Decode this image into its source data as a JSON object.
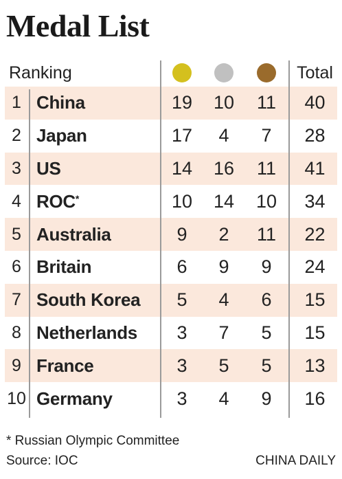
{
  "title": "Medal List",
  "header": {
    "ranking": "Ranking",
    "total": "Total",
    "medal_colors": {
      "gold": "#d4c01e",
      "silver": "#c0c0c0",
      "bronze": "#9a6b2c"
    },
    "medal_icons": [
      "gold-medal-icon",
      "silver-medal-icon",
      "bronze-medal-icon"
    ]
  },
  "colors": {
    "row_shade": "#fbe8dc",
    "divider": "#9a9a9a"
  },
  "rows": [
    {
      "rank": "1",
      "country": "China",
      "mark": "",
      "gold": "19",
      "silver": "10",
      "bronze": "11",
      "total": "40"
    },
    {
      "rank": "2",
      "country": "Japan",
      "mark": "",
      "gold": "17",
      "silver": "4",
      "bronze": "7",
      "total": "28"
    },
    {
      "rank": "3",
      "country": "US",
      "mark": "",
      "gold": "14",
      "silver": "16",
      "bronze": "11",
      "total": "41"
    },
    {
      "rank": "4",
      "country": "ROC",
      "mark": "*",
      "gold": "10",
      "silver": "14",
      "bronze": "10",
      "total": "34"
    },
    {
      "rank": "5",
      "country": "Australia",
      "mark": "",
      "gold": "9",
      "silver": "2",
      "bronze": "11",
      "total": "22"
    },
    {
      "rank": "6",
      "country": "Britain",
      "mark": "",
      "gold": "6",
      "silver": "9",
      "bronze": "9",
      "total": "24"
    },
    {
      "rank": "7",
      "country": "South Korea",
      "mark": "",
      "gold": "5",
      "silver": "4",
      "bronze": "6",
      "total": "15"
    },
    {
      "rank": "8",
      "country": "Netherlands",
      "mark": "",
      "gold": "3",
      "silver": "7",
      "bronze": "5",
      "total": "15"
    },
    {
      "rank": "9",
      "country": "France",
      "mark": "",
      "gold": "3",
      "silver": "5",
      "bronze": "5",
      "total": "13"
    },
    {
      "rank": "10",
      "country": "Germany",
      "mark": "",
      "gold": "3",
      "silver": "4",
      "bronze": "9",
      "total": "16"
    }
  ],
  "footnote": "* Russian Olympic Committee",
  "source": "Source: IOC",
  "brand": "CHINA DAILY"
}
